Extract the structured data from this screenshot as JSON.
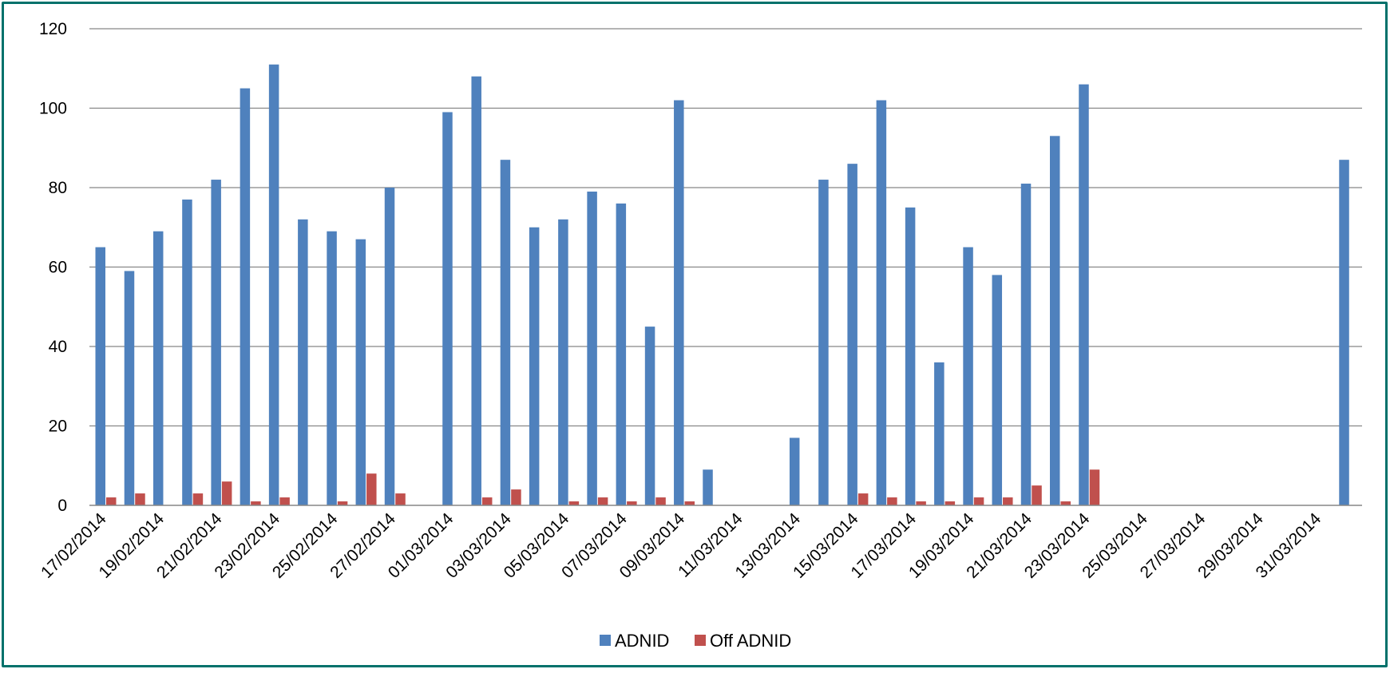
{
  "chart_data": {
    "type": "bar",
    "title": "",
    "xlabel": "",
    "ylabel": "",
    "ylim": [
      0,
      120
    ],
    "yticks": [
      0,
      20,
      40,
      60,
      80,
      100,
      120
    ],
    "grid": true,
    "legend_position": "bottom",
    "categories": [
      "17/02/2014",
      "18/02/2014",
      "19/02/2014",
      "20/02/2014",
      "21/02/2014",
      "22/02/2014",
      "23/02/2014",
      "24/02/2014",
      "25/02/2014",
      "26/02/2014",
      "27/02/2014",
      "28/02/2014",
      "01/03/2014",
      "02/03/2014",
      "03/03/2014",
      "04/03/2014",
      "05/03/2014",
      "06/03/2014",
      "07/03/2014",
      "08/03/2014",
      "09/03/2014",
      "10/03/2014",
      "11/03/2014",
      "12/03/2014",
      "13/03/2014",
      "14/03/2014",
      "15/03/2014",
      "16/03/2014",
      "17/03/2014",
      "18/03/2014",
      "19/03/2014",
      "20/03/2014",
      "21/03/2014",
      "22/03/2014",
      "23/03/2014",
      "24/03/2014",
      "25/03/2014",
      "26/03/2014",
      "27/03/2014",
      "28/03/2014",
      "29/03/2014",
      "30/03/2014",
      "31/03/2014",
      "01/04/2014"
    ],
    "tick_labels": [
      "17/02/2014",
      "19/02/2014",
      "21/02/2014",
      "23/02/2014",
      "25/02/2014",
      "27/02/2014",
      "01/03/2014",
      "03/03/2014",
      "05/03/2014",
      "07/03/2014",
      "09/03/2014",
      "11/03/2014",
      "13/03/2014",
      "15/03/2014",
      "17/03/2014",
      "19/03/2014",
      "21/03/2014",
      "23/03/2014",
      "25/03/2014",
      "27/03/2014",
      "29/03/2014",
      "31/03/2014"
    ],
    "series": [
      {
        "name": "ADNID",
        "color": "#4f81bd",
        "values": [
          65,
          59,
          69,
          77,
          82,
          105,
          111,
          72,
          69,
          67,
          80,
          0,
          99,
          108,
          87,
          70,
          72,
          79,
          76,
          45,
          102,
          9,
          0,
          0,
          17,
          82,
          86,
          102,
          75,
          36,
          65,
          58,
          81,
          93,
          106,
          0,
          0,
          0,
          0,
          0,
          0,
          0,
          0,
          87
        ]
      },
      {
        "name": "Off ADNID",
        "color": "#c0504d",
        "values": [
          2,
          3,
          0,
          3,
          6,
          1,
          2,
          0,
          1,
          8,
          3,
          0,
          0,
          2,
          4,
          0,
          1,
          2,
          1,
          2,
          1,
          0,
          0,
          0,
          0,
          0,
          3,
          2,
          1,
          1,
          2,
          2,
          5,
          1,
          9,
          0,
          0,
          0,
          0,
          0,
          0,
          0,
          0,
          0
        ]
      }
    ]
  }
}
